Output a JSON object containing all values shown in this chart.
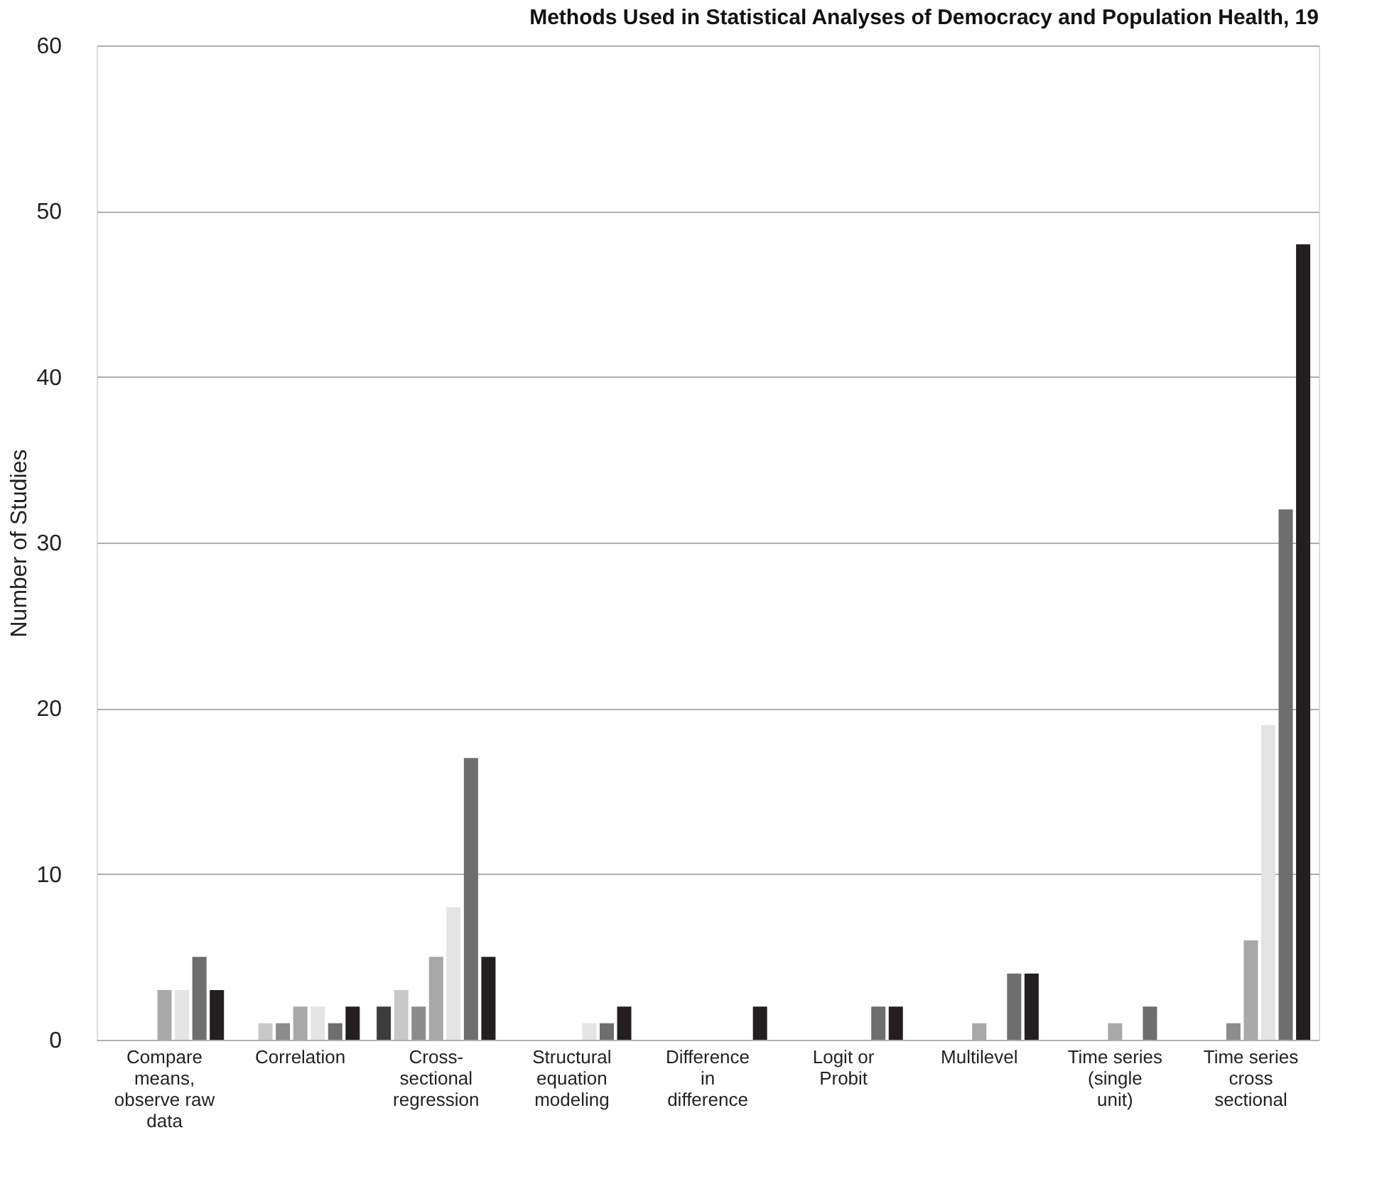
{
  "chart_data": {
    "type": "bar",
    "title": "Methods Used in Statistical Analyses of Democracy and Population Health, 19",
    "ylabel": "Number of Studies",
    "categories": [
      "Compare means, observe raw data",
      "Correlation",
      "Cross-sectional regression",
      "Structural equation modeling",
      "Difference in difference",
      "Logit or Probit",
      "Multilevel",
      "Time series (single unit)",
      "Time series cross sectional"
    ],
    "series": [
      {
        "color": "#3c3c3c",
        "values": [
          0,
          0,
          2,
          0,
          0,
          0,
          0,
          0,
          0
        ]
      },
      {
        "color": "#c8c8c8",
        "values": [
          0,
          1,
          3,
          0,
          0,
          0,
          0,
          0,
          0
        ]
      },
      {
        "color": "#8c8c8c",
        "values": [
          0,
          1,
          2,
          0,
          0,
          0,
          0,
          0,
          1
        ]
      },
      {
        "color": "#a8a8a8",
        "values": [
          3,
          2,
          5,
          0,
          0,
          0,
          1,
          1,
          6
        ]
      },
      {
        "color": "#e4e4e4",
        "values": [
          3,
          2,
          8,
          1,
          0,
          0,
          0,
          0,
          19
        ]
      },
      {
        "color": "#6e6e6e",
        "values": [
          5,
          1,
          17,
          1,
          0,
          2,
          4,
          2,
          32
        ]
      },
      {
        "color": "#231f20",
        "values": [
          3,
          2,
          5,
          2,
          2,
          2,
          4,
          0,
          48
        ]
      }
    ],
    "ylim": [
      0,
      60
    ],
    "yticks": [
      0,
      10,
      20,
      30,
      40,
      50,
      60
    ],
    "grid": "y"
  }
}
